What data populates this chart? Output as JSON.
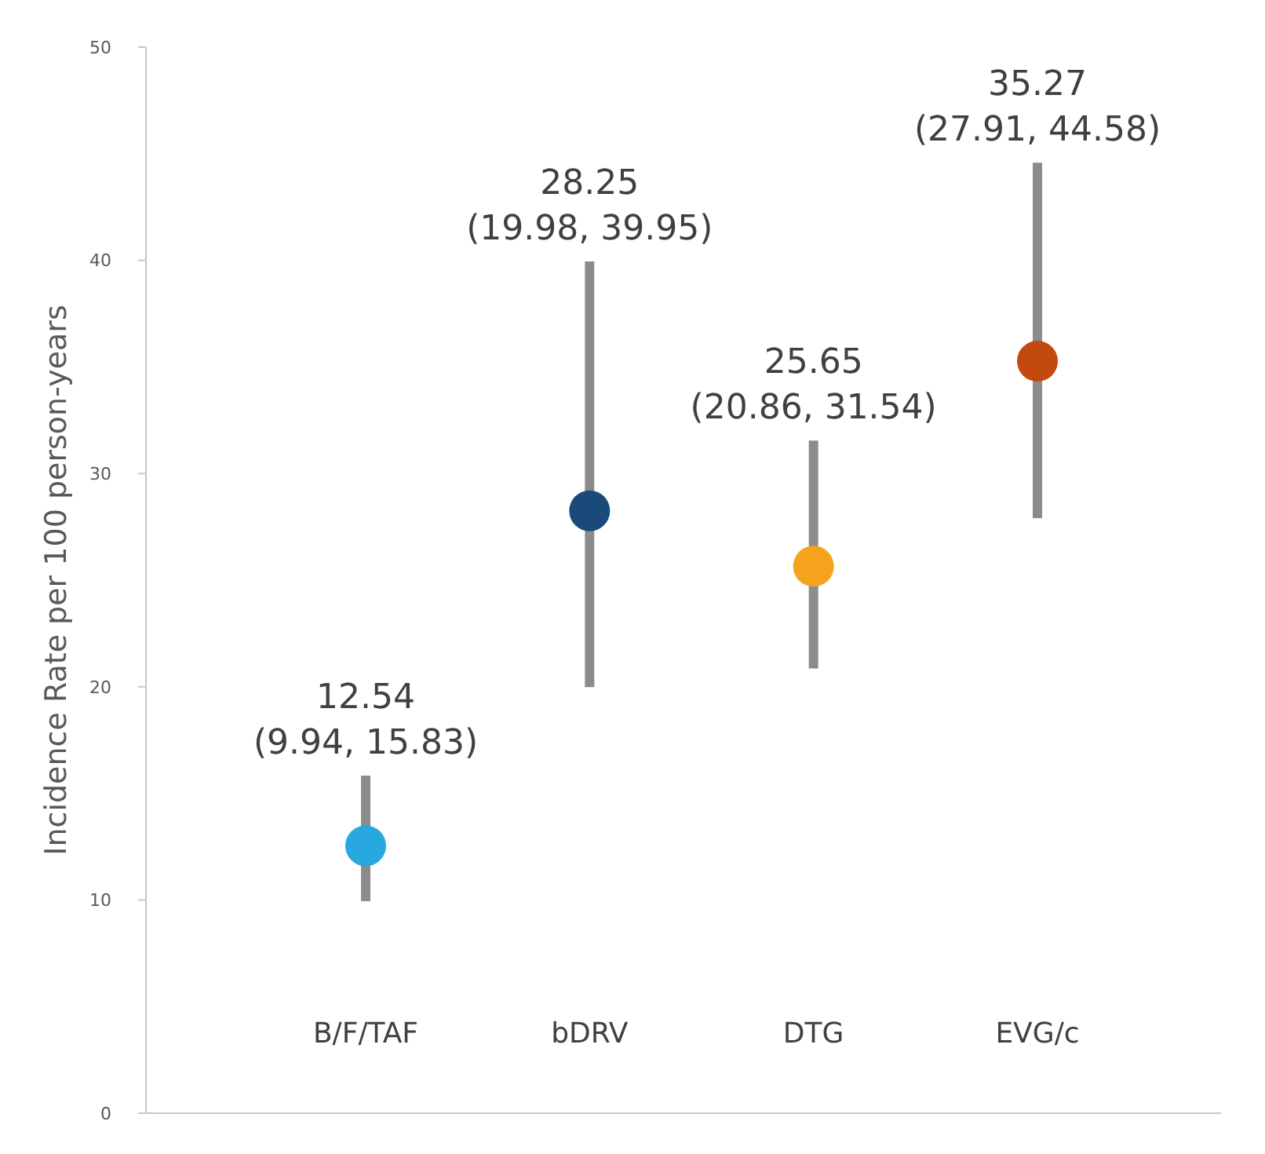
{
  "chart_data": {
    "type": "scatter",
    "ylabel": "Incidence Rate per 100 person-years",
    "categories": [
      "B/F/TAF",
      "bDRV",
      "DTG",
      "EVG/c"
    ],
    "values": [
      12.54,
      28.25,
      25.65,
      35.27
    ],
    "errors": [
      [
        9.94,
        15.83
      ],
      [
        19.98,
        39.95
      ],
      [
        20.86,
        31.54
      ],
      [
        27.91,
        44.58
      ]
    ],
    "colors": [
      "#29a8e0",
      "#1a4a7a",
      "#f5a21c",
      "#c4490f"
    ],
    "annotations": [
      {
        "text": "12.54\n(9.94, 15.83)",
        "x": "B/F/TAF",
        "y": 15.83
      },
      {
        "text": "28.25\n(19.98, 39.95)",
        "x": "bDRV",
        "y": 39.95
      },
      {
        "text": "25.65\n(20.86, 31.54)",
        "x": "DTG",
        "y": 31.54
      },
      {
        "text": "35.27\n(27.91, 44.58)",
        "x": "EVG/c",
        "y": 44.58
      }
    ],
    "ylim": [
      0,
      50
    ],
    "yticks": [
      0,
      10,
      20,
      30,
      40,
      50
    ],
    "marker": "circle",
    "grid": false
  }
}
